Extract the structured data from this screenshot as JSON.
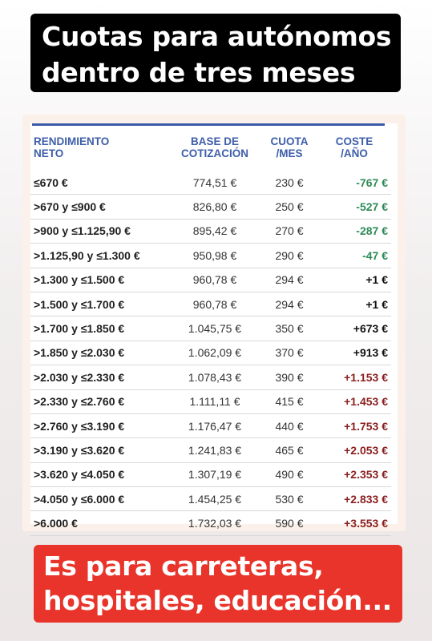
{
  "title": {
    "line1": "Cuotas para autónomos",
    "line2": "dentro de tres meses"
  },
  "table": {
    "headers": [
      [
        "RENDIMIENTO",
        "NETO"
      ],
      [
        "BASE DE",
        "COTIZACIÓN"
      ],
      [
        "CUOTA",
        "/MES"
      ],
      [
        "COSTE",
        "/AÑO"
      ]
    ],
    "rows": [
      {
        "tramo": "≤670 €",
        "base": "774,51 €",
        "cuota": "230 €",
        "coste": "-767 €",
        "tone": "neg"
      },
      {
        "tramo": ">670 y ≤900 €",
        "base": "826,80 €",
        "cuota": "250 €",
        "coste": "-527 €",
        "tone": "neg"
      },
      {
        "tramo": ">900 y ≤1.125,90 €",
        "base": "895,42 €",
        "cuota": "270 €",
        "coste": "-287 €",
        "tone": "neg"
      },
      {
        "tramo": ">1.125,90 y ≤1.300 €",
        "base": "950,98 €",
        "cuota": "290 €",
        "coste": "-47 €",
        "tone": "neg"
      },
      {
        "tramo": ">1.300 y ≤1.500 €",
        "base": "960,78 €",
        "cuota": "294 €",
        "coste": "+1 €",
        "tone": "zero"
      },
      {
        "tramo": ">1.500 y ≤1.700 €",
        "base": "960,78 €",
        "cuota": "294 €",
        "coste": "+1 €",
        "tone": "zero"
      },
      {
        "tramo": ">1.700 y ≤1.850 €",
        "base": "1.045,75 €",
        "cuota": "350 €",
        "coste": "+673 €",
        "tone": "zero"
      },
      {
        "tramo": ">1.850 y ≤2.030 €",
        "base": "1.062,09 €",
        "cuota": "370 €",
        "coste": "+913 €",
        "tone": "zero"
      },
      {
        "tramo": ">2.030 y ≤2.330 €",
        "base": "1.078,43 €",
        "cuota": "390 €",
        "coste": "+1.153 €",
        "tone": "up"
      },
      {
        "tramo": ">2.330 y ≤2.760 €",
        "base": "1.111,11 €",
        "cuota": "415 €",
        "coste": "+1.453 €",
        "tone": "up"
      },
      {
        "tramo": ">2.760 y ≤3.190 €",
        "base": "1.176,47 €",
        "cuota": "440 €",
        "coste": "+1.753 €",
        "tone": "up"
      },
      {
        "tramo": ">3.190 y ≤3.620 €",
        "base": "1.241,83 €",
        "cuota": "465 €",
        "coste": "+2.053 €",
        "tone": "up"
      },
      {
        "tramo": ">3.620 y ≤4.050 €",
        "base": "1.307,19 €",
        "cuota": "490 €",
        "coste": "+2.353 €",
        "tone": "up"
      },
      {
        "tramo": ">4.050 y ≤6.000 €",
        "base": "1.454,25 €",
        "cuota": "530 €",
        "coste": "+2.833 €",
        "tone": "up"
      },
      {
        "tramo": ">6.000 €",
        "base": "1.732,03 €",
        "cuota": "590 €",
        "coste": "+3.553 €",
        "tone": "up"
      }
    ]
  },
  "colors": {
    "header_text": "#3d5ea9",
    "negative_cost": "#2e8b57",
    "positive_cost": "#8b1f1f",
    "banner_red": "#e8342a"
  },
  "caption": {
    "line1": "Es para carreteras,",
    "line2": "hospitales, educación..."
  }
}
